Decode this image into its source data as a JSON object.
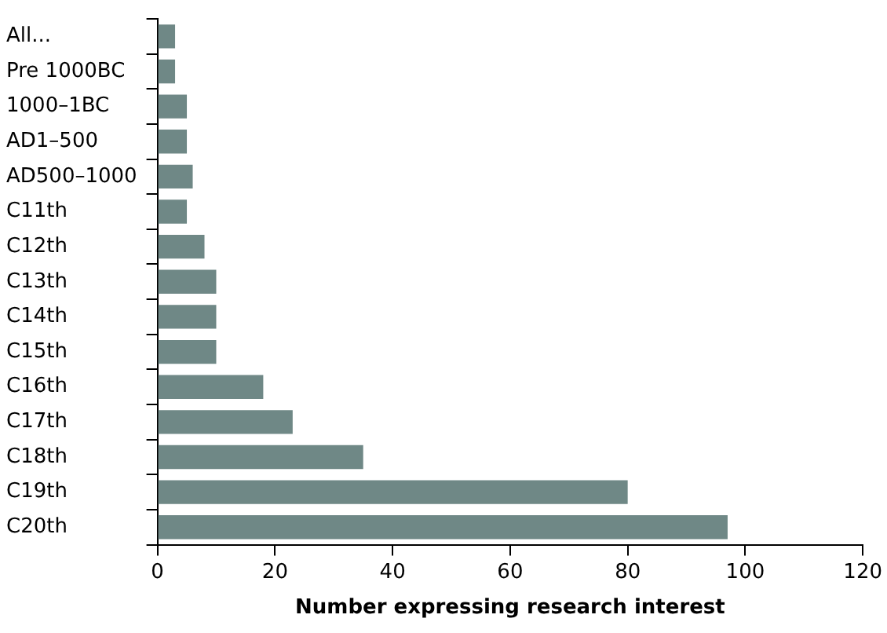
{
  "chart_data": {
    "type": "bar",
    "orientation": "horizontal",
    "xlabel": "Number expressing research interest",
    "categories": [
      "All...",
      "Pre 1000BC",
      "1000–1BC",
      "AD1–500",
      "AD500–1000",
      "C11th",
      "C12th",
      "C13th",
      "C14th",
      "C15th",
      "C16th",
      "C17th",
      "C18th",
      "C19th",
      "C20th"
    ],
    "values": [
      3,
      3,
      5,
      5,
      6,
      5,
      8,
      10,
      10,
      10,
      18,
      23,
      35,
      80,
      97
    ],
    "color": "#6f8886",
    "xlim": [
      0,
      120
    ],
    "xticks": [
      0,
      20,
      40,
      60,
      80,
      100,
      120
    ],
    "grid": false,
    "legend": false
  }
}
